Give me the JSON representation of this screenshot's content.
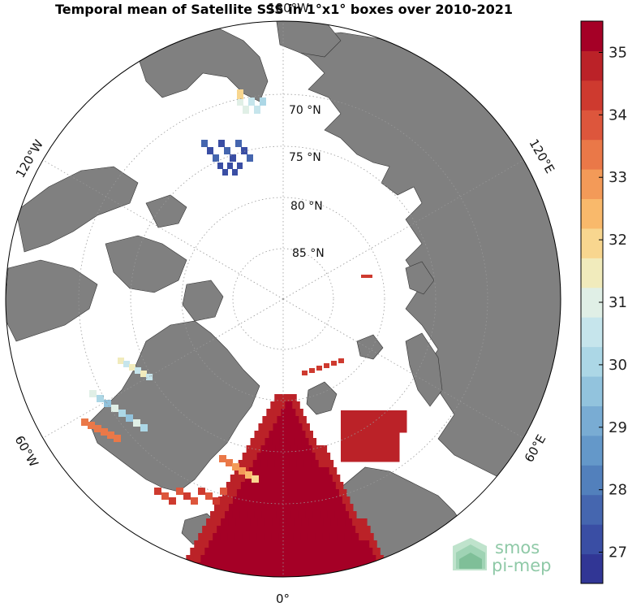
{
  "title": "Temporal mean of Satellite SSS in 1°x1° boxes over 2010-2021",
  "map": {
    "projection": "north-polar-stereographic",
    "land_color": "#808080",
    "ocean_color": "#ffffff",
    "lat_labels": [
      "70 °N",
      "75 °N",
      "80 °N",
      "85 °N"
    ],
    "lon_labels": {
      "top": "180°W",
      "left_upper": "120°W",
      "left_lower": "60°W",
      "bottom": "0°",
      "right_upper": "120°E",
      "right_lower": "60°E"
    }
  },
  "colorbar": {
    "min": 26.5,
    "max": 35.5,
    "ticks": [
      "27",
      "28",
      "29",
      "30",
      "31",
      "32",
      "33",
      "34",
      "35"
    ],
    "colors": [
      "#313695",
      "#3a4ea4",
      "#4566af",
      "#5280bc",
      "#6498c9",
      "#79acd3",
      "#92c3dd",
      "#acd7e6",
      "#c6e5ec",
      "#e0efe6",
      "#f1ebbc",
      "#f8d68f",
      "#f9b96b",
      "#f39a58",
      "#ea7848",
      "#dd563c",
      "#ce3a2f",
      "#bb2228",
      "#a50026"
    ]
  },
  "logo": {
    "line1": "smos",
    "line2": "pi-mep",
    "color": "#8fc9a7"
  }
}
